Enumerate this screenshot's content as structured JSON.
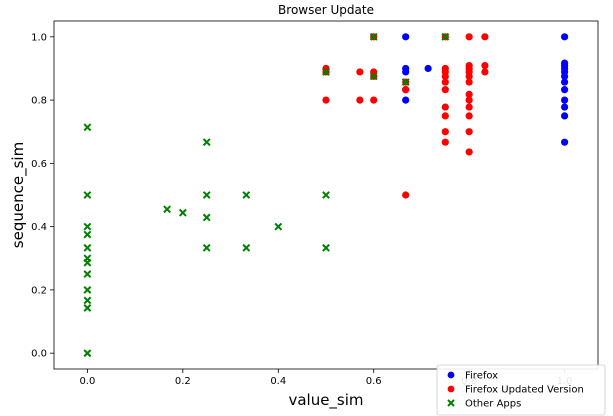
{
  "chart_data": {
    "type": "scatter",
    "title": "Browser Update",
    "xlabel": "value_sim",
    "ylabel": "sequence_sim",
    "xlim": [
      -0.07,
      1.07
    ],
    "ylim": [
      -0.05,
      1.05
    ],
    "xticks": [
      "0.0",
      "0.2",
      "0.4",
      "0.6",
      "0.8",
      "1.0"
    ],
    "yticks": [
      "0.0",
      "0.2",
      "0.4",
      "0.6",
      "0.8",
      "1.0"
    ],
    "legend_position": "bottom-right",
    "grid": false,
    "series": [
      {
        "name": "Firefox",
        "marker": "circle",
        "color": "#0000ff",
        "points": [
          [
            0.667,
            1.0
          ],
          [
            0.667,
            0.9
          ],
          [
            0.667,
            0.889
          ],
          [
            0.667,
            0.833
          ],
          [
            0.667,
            0.8
          ],
          [
            0.714,
            0.9
          ],
          [
            1.0,
            1.0
          ],
          [
            1.0,
            0.917
          ],
          [
            1.0,
            0.909
          ],
          [
            1.0,
            0.9
          ],
          [
            1.0,
            0.889
          ],
          [
            1.0,
            0.875
          ],
          [
            1.0,
            0.857
          ],
          [
            1.0,
            0.833
          ],
          [
            1.0,
            0.8
          ],
          [
            1.0,
            0.778
          ],
          [
            1.0,
            0.75
          ],
          [
            1.0,
            0.667
          ]
        ]
      },
      {
        "name": "Firefox Updated Version",
        "marker": "circle",
        "color": "#ff0000",
        "points": [
          [
            0.5,
            0.9
          ],
          [
            0.5,
            0.889
          ],
          [
            0.5,
            0.8
          ],
          [
            0.571,
            0.889
          ],
          [
            0.571,
            0.8
          ],
          [
            0.6,
            1.0
          ],
          [
            0.6,
            0.889
          ],
          [
            0.6,
            0.875
          ],
          [
            0.6,
            0.8
          ],
          [
            0.667,
            0.857
          ],
          [
            0.667,
            0.833
          ],
          [
            0.667,
            0.5
          ],
          [
            0.75,
            1.0
          ],
          [
            0.75,
            0.9
          ],
          [
            0.75,
            0.889
          ],
          [
            0.75,
            0.875
          ],
          [
            0.75,
            0.857
          ],
          [
            0.75,
            0.833
          ],
          [
            0.75,
            0.778
          ],
          [
            0.75,
            0.75
          ],
          [
            0.75,
            0.7
          ],
          [
            0.75,
            0.667
          ],
          [
            0.8,
            1.0
          ],
          [
            0.8,
            0.909
          ],
          [
            0.8,
            0.9
          ],
          [
            0.8,
            0.889
          ],
          [
            0.8,
            0.875
          ],
          [
            0.8,
            0.857
          ],
          [
            0.8,
            0.818
          ],
          [
            0.8,
            0.8
          ],
          [
            0.8,
            0.778
          ],
          [
            0.8,
            0.75
          ],
          [
            0.8,
            0.7
          ],
          [
            0.8,
            0.636
          ],
          [
            0.833,
            1.0
          ],
          [
            0.833,
            0.909
          ],
          [
            0.833,
            0.889
          ]
        ]
      },
      {
        "name": "Other Apps",
        "marker": "x",
        "color": "#008000",
        "points": [
          [
            0.0,
            0.714
          ],
          [
            0.0,
            0.5
          ],
          [
            0.0,
            0.4
          ],
          [
            0.0,
            0.375
          ],
          [
            0.0,
            0.333
          ],
          [
            0.0,
            0.3
          ],
          [
            0.0,
            0.286
          ],
          [
            0.0,
            0.25
          ],
          [
            0.0,
            0.2
          ],
          [
            0.0,
            0.167
          ],
          [
            0.0,
            0.143
          ],
          [
            0.0,
            0.0
          ],
          [
            0.167,
            0.455
          ],
          [
            0.2,
            0.444
          ],
          [
            0.25,
            0.667
          ],
          [
            0.25,
            0.5
          ],
          [
            0.25,
            0.429
          ],
          [
            0.25,
            0.333
          ],
          [
            0.333,
            0.5
          ],
          [
            0.333,
            0.333
          ],
          [
            0.4,
            0.4
          ],
          [
            0.5,
            0.889
          ],
          [
            0.5,
            0.5
          ],
          [
            0.5,
            0.333
          ],
          [
            0.6,
            1.0
          ],
          [
            0.6,
            0.875
          ],
          [
            0.667,
            0.857
          ],
          [
            0.75,
            1.0
          ]
        ]
      }
    ]
  }
}
